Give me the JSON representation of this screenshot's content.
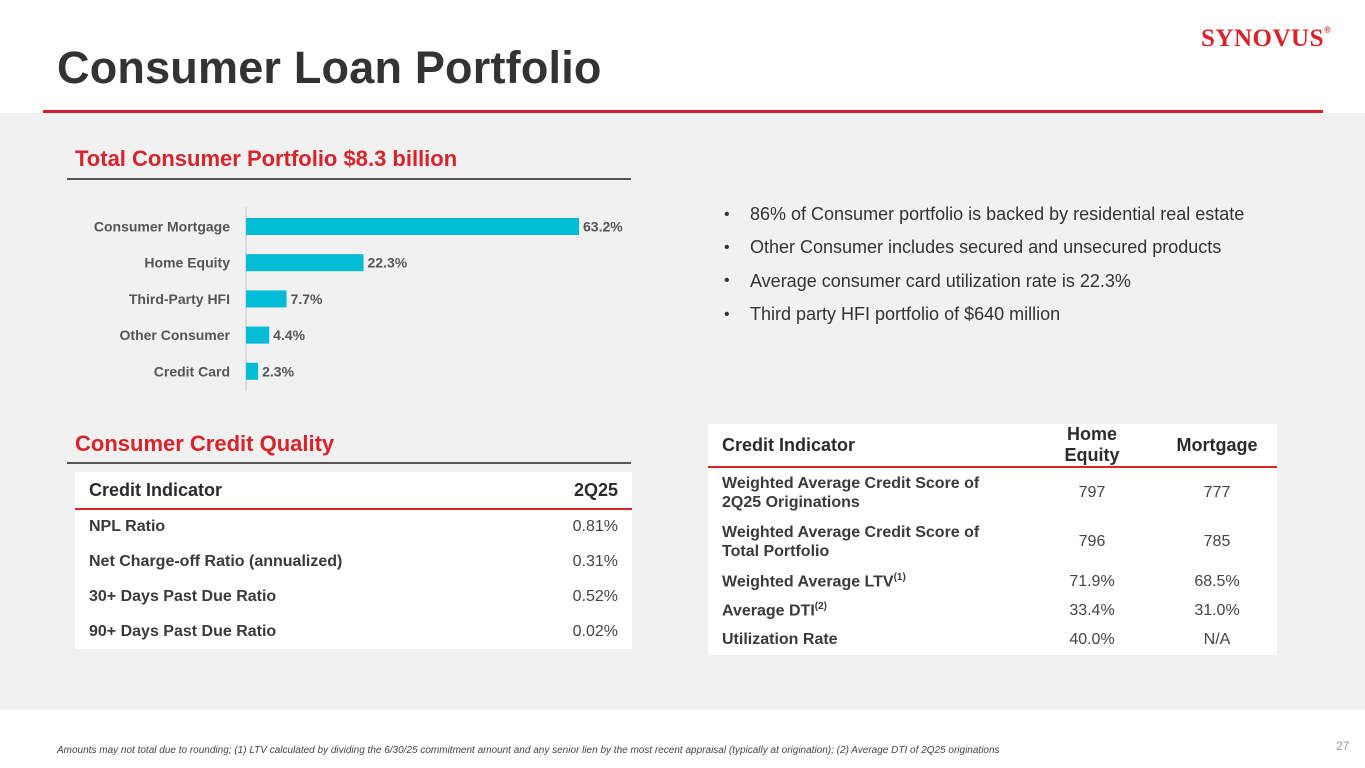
{
  "header": {
    "title": "Consumer Loan Portfolio",
    "logo_text": "Synovus",
    "accent_color": "#d8232a"
  },
  "portfolio": {
    "section_title": "Total Consumer Portfolio $8.3 billion"
  },
  "chart_data": {
    "type": "bar",
    "orientation": "horizontal",
    "title": "Total Consumer Portfolio $8.3 billion",
    "categories": [
      "Consumer Mortgage",
      "Home Equity",
      "Third-Party HFI",
      "Other Consumer",
      "Credit Card"
    ],
    "values": [
      63.2,
      22.3,
      7.7,
      4.4,
      2.3
    ],
    "value_labels": [
      "63.2%",
      "22.3%",
      "7.7%",
      "4.4%",
      "2.3%"
    ],
    "unit": "%",
    "bar_color": "#00bcd4",
    "xlim": [
      0,
      63.2
    ],
    "grid": false,
    "xlabel": "",
    "ylabel": ""
  },
  "bullets": [
    "86% of Consumer portfolio is backed by residential real estate",
    "Other Consumer includes secured and unsecured products",
    "Average consumer card utilization rate is 22.3%",
    "Third party HFI portfolio of $640 million"
  ],
  "credit_quality": {
    "section_title": "Consumer Credit Quality",
    "headers": [
      "Credit Indicator",
      "2Q25"
    ],
    "rows": [
      {
        "label": "NPL Ratio",
        "value": "0.81%"
      },
      {
        "label": "Net Charge-off Ratio (annualized)",
        "value": "0.31%"
      },
      {
        "label": "30+ Days Past Due Ratio",
        "value": "0.52%"
      },
      {
        "label": "90+ Days Past Due Ratio",
        "value": "0.02%"
      }
    ]
  },
  "credit_indicator": {
    "headers": [
      "Credit Indicator",
      "Home Equity",
      "Mortgage"
    ],
    "rows": [
      {
        "label": "Weighted Average Credit Score of 2Q25 Originations",
        "sup": "",
        "home_equity": "797",
        "mortgage": "777"
      },
      {
        "label": "Weighted Average Credit Score of Total Portfolio",
        "sup": "",
        "home_equity": "796",
        "mortgage": "785"
      },
      {
        "label": "Weighted Average LTV",
        "sup": "(1)",
        "home_equity": "71.9%",
        "mortgage": "68.5%"
      },
      {
        "label": "Average DTI",
        "sup": "(2)",
        "home_equity": "33.4%",
        "mortgage": "31.0%"
      },
      {
        "label": "Utilization Rate",
        "sup": "",
        "home_equity": "40.0%",
        "mortgage": "N/A"
      }
    ]
  },
  "footer": {
    "footnote": "Amounts may not total due to rounding;  (1) LTV calculated by dividing the 6/30/25 commitment amount and any senior lien by the most recent appraisal (typically at origination); (2) Average DTI of 2Q25 originations",
    "page_number": "27"
  }
}
